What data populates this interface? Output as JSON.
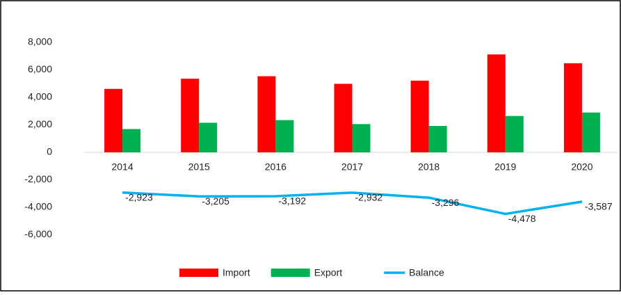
{
  "chart_data": {
    "type": "bar_line",
    "categories": [
      "2014",
      "2015",
      "2016",
      "2017",
      "2018",
      "2019",
      "2020"
    ],
    "series": [
      {
        "name": "Import",
        "color": "#ff0000",
        "kind": "bar",
        "values": [
          4620,
          5360,
          5540,
          4990,
          5220,
          7128,
          6487
        ]
      },
      {
        "name": "Export",
        "color": "#00b050",
        "kind": "bar",
        "values": [
          1697,
          2155,
          2348,
          2058,
          1924,
          2650,
          2900
        ]
      },
      {
        "name": "Balance",
        "color": "#00b0f0",
        "kind": "line",
        "values": [
          -2923,
          -3205,
          -3192,
          -2932,
          -3296,
          -4478,
          -3587
        ],
        "value_labels": [
          "-2,923",
          "-3,205",
          "-3,192",
          "-2,932",
          "-3,296",
          "-4,478",
          "-3,587"
        ]
      }
    ],
    "ylim": [
      -8000,
      10000
    ],
    "yticks": [
      {
        "value": -6000,
        "label": "-6,000"
      },
      {
        "value": -4000,
        "label": "-4,000"
      },
      {
        "value": -2000,
        "label": "-2,000"
      },
      0,
      {
        "value": 2000,
        "label": "2,000"
      },
      {
        "value": 4000,
        "label": "4,000"
      },
      {
        "value": 6000,
        "label": "6,000"
      },
      {
        "value": 8000,
        "label": "8,000"
      }
    ],
    "legend": "bottom"
  }
}
